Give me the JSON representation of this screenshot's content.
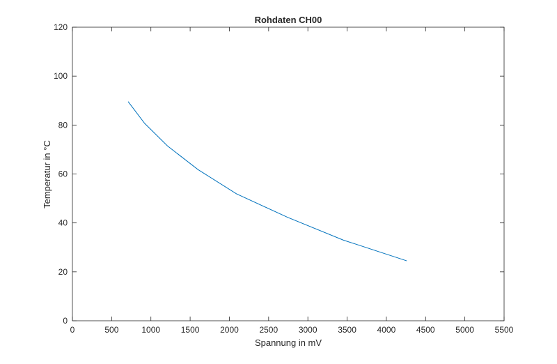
{
  "chart_data": {
    "type": "line",
    "title": "Rohdaten CH00",
    "xlabel": "Spannung in mV",
    "ylabel": "Temperatur in °C",
    "xlim": [
      0,
      5500
    ],
    "ylim": [
      0,
      120
    ],
    "xticks": [
      0,
      500,
      1000,
      1500,
      2000,
      2500,
      3000,
      3500,
      4000,
      4500,
      5000,
      5500
    ],
    "yticks": [
      0,
      20,
      40,
      60,
      80,
      100,
      120
    ],
    "grid": false,
    "line_color": "#0072BD",
    "series": [
      {
        "x": [
          710,
          920,
          1210,
          1600,
          2090,
          2740,
          3450,
          4260
        ],
        "y": [
          89.6,
          80.7,
          71.5,
          61.8,
          51.9,
          42.3,
          33.0,
          24.5
        ]
      }
    ]
  }
}
